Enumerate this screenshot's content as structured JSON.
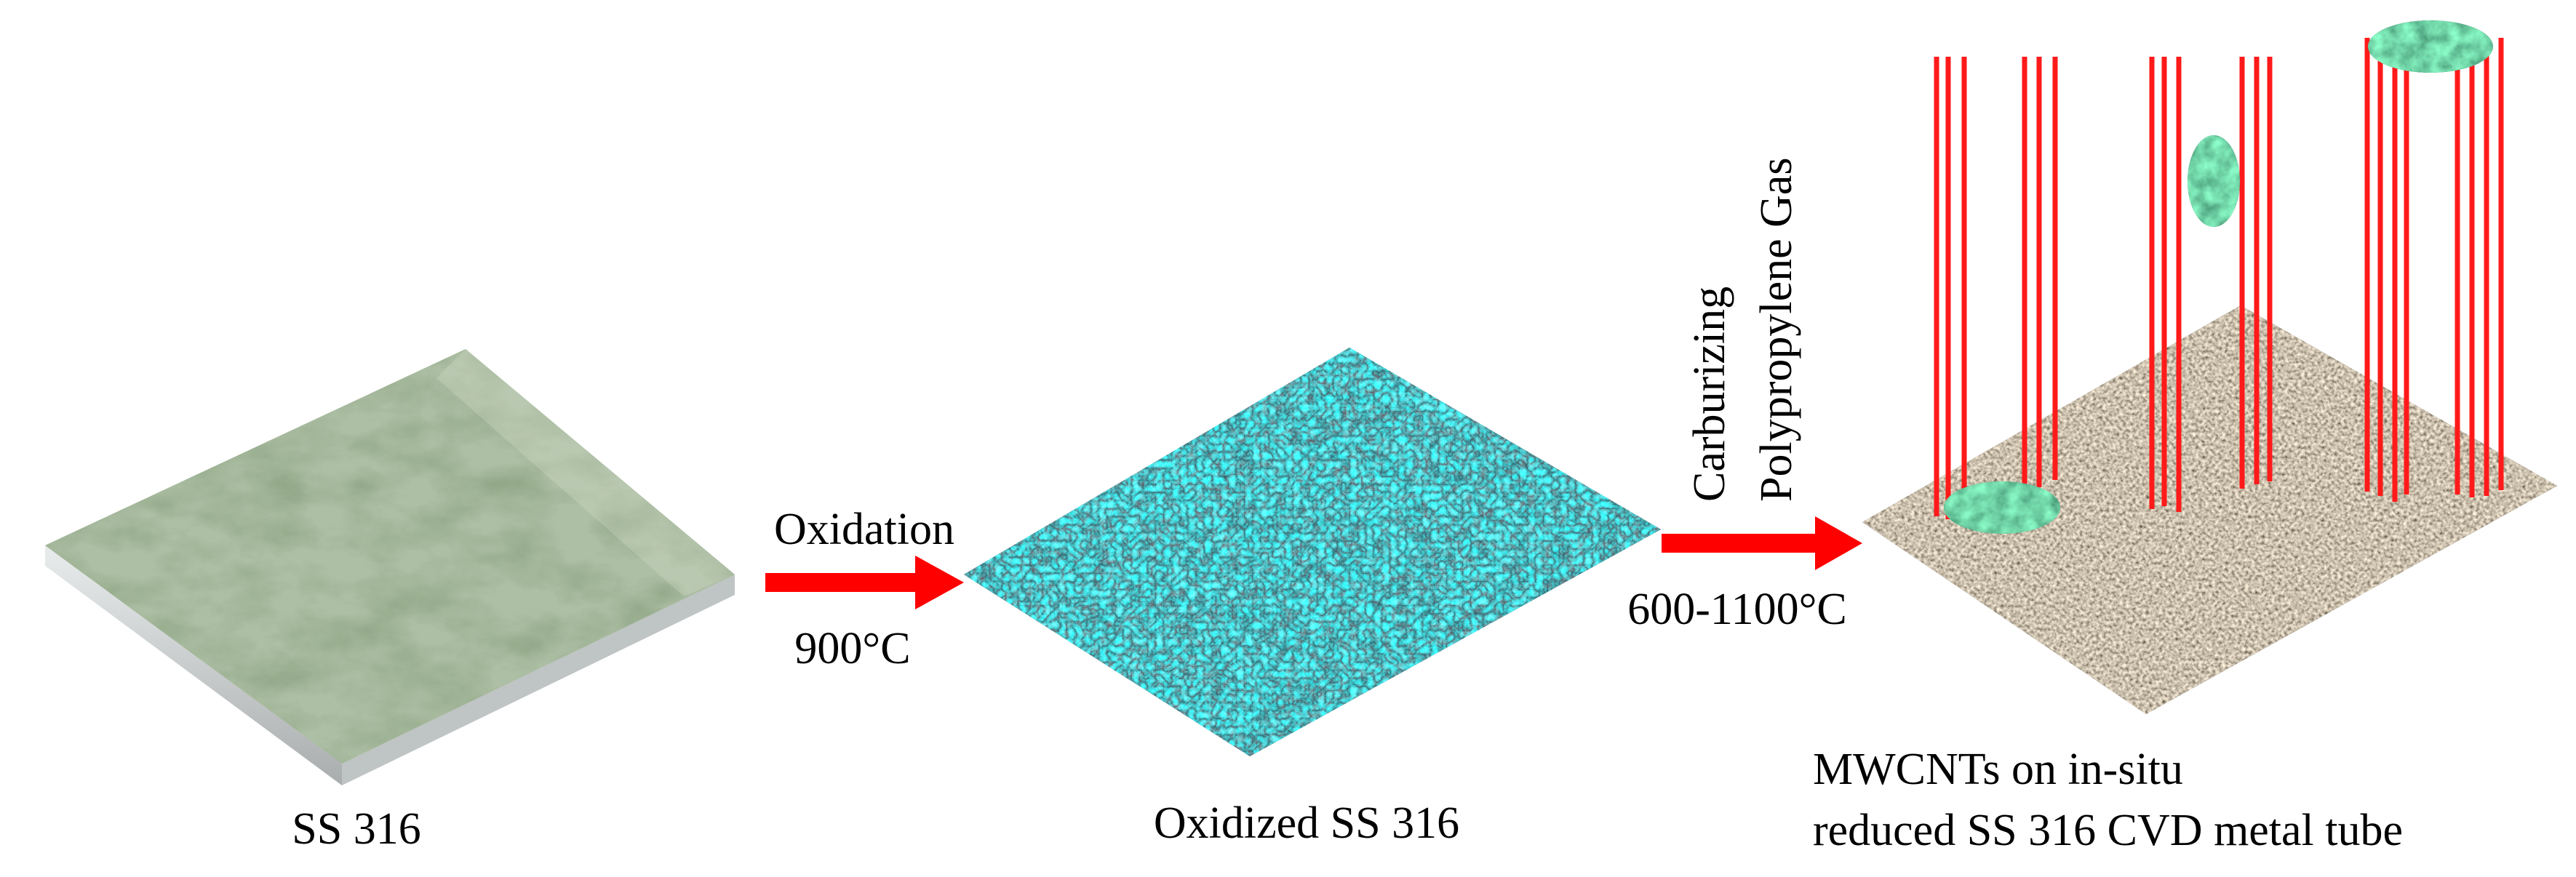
{
  "stages": [
    {
      "label": "SS 316"
    },
    {
      "label": "Oxidized SS 316"
    },
    {
      "label_lines": [
        "MWCNTs on in-situ",
        "reduced SS 316 CVD metal tube"
      ]
    }
  ],
  "steps": [
    {
      "above": "Oxidation",
      "below": "900°C"
    },
    {
      "above_lines": [
        "Carburizing",
        "Polypropylene Gas"
      ],
      "below": "600-1100°C"
    }
  ],
  "colors": {
    "arrow": "#ff0000",
    "nanotube": "#ff1a1a",
    "plate_top": "#8fa585",
    "plate_side": "#cfd3d2",
    "oxide": "#1f8a8d",
    "substrate": "#6a5c4a",
    "catalyst": "#1e5b3c"
  }
}
